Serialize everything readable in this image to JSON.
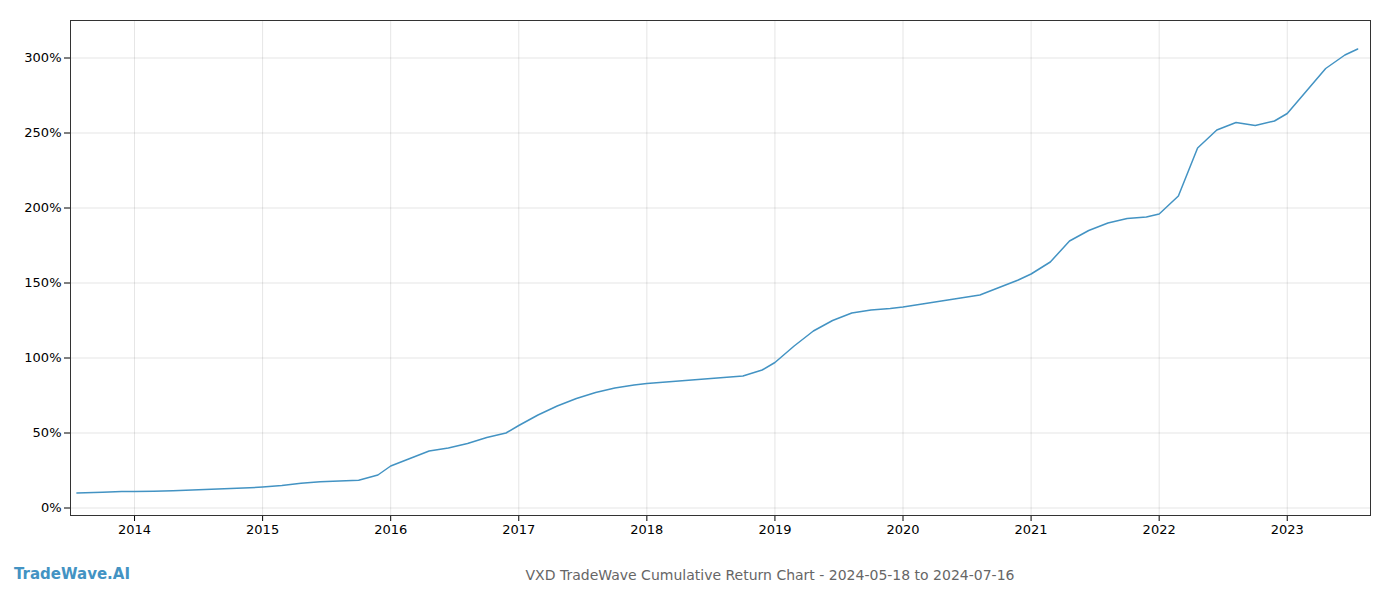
{
  "chart_data": {
    "type": "line",
    "title": "VXD TradeWave Cumulative Return Chart - 2024-05-18 to 2024-07-16",
    "annotations": [
      {
        "text": "TradeWave.AI",
        "color": "#4393c3"
      }
    ],
    "x": [
      2013.55,
      2013.75,
      2013.9,
      2014.0,
      2014.15,
      2014.3,
      2014.45,
      2014.6,
      2014.75,
      2014.9,
      2015.0,
      2015.15,
      2015.3,
      2015.45,
      2015.6,
      2015.75,
      2015.9,
      2016.0,
      2016.15,
      2016.3,
      2016.45,
      2016.6,
      2016.75,
      2016.9,
      2017.0,
      2017.15,
      2017.3,
      2017.45,
      2017.6,
      2017.75,
      2017.9,
      2018.0,
      2018.15,
      2018.3,
      2018.45,
      2018.6,
      2018.75,
      2018.9,
      2019.0,
      2019.15,
      2019.3,
      2019.45,
      2019.6,
      2019.75,
      2019.9,
      2020.0,
      2020.15,
      2020.3,
      2020.45,
      2020.6,
      2020.75,
      2020.9,
      2021.0,
      2021.15,
      2021.3,
      2021.45,
      2021.6,
      2021.75,
      2021.9,
      2022.0,
      2022.15,
      2022.3,
      2022.45,
      2022.6,
      2022.75,
      2022.9,
      2023.0,
      2023.15,
      2023.3,
      2023.45,
      2023.55
    ],
    "values": [
      10,
      10.5,
      11,
      11,
      11.2,
      11.5,
      12,
      12.5,
      13,
      13.5,
      14,
      15,
      16.5,
      17.5,
      18,
      18.5,
      22,
      28,
      33,
      38,
      40,
      43,
      47,
      50,
      55,
      62,
      68,
      73,
      77,
      80,
      82,
      83,
      84,
      85,
      86,
      87,
      88,
      92,
      97,
      108,
      118,
      125,
      130,
      132,
      133,
      134,
      136,
      138,
      140,
      142,
      147,
      152,
      156,
      164,
      178,
      185,
      190,
      193,
      194,
      196,
      208,
      240,
      252,
      257,
      255,
      258,
      263,
      278,
      293,
      302,
      306
    ],
    "color": "#4393c3",
    "xlim": [
      2013.5,
      2023.65
    ],
    "xticks": [
      2014,
      2015,
      2016,
      2017,
      2018,
      2019,
      2020,
      2021,
      2022,
      2023
    ],
    "ylim": [
      -5,
      325
    ],
    "yticks": [
      {
        "value": 0,
        "label": "0%"
      },
      {
        "value": 50,
        "label": "50%"
      },
      {
        "value": 100,
        "label": "100%"
      },
      {
        "value": 150,
        "label": "150%"
      },
      {
        "value": 200,
        "label": "200%"
      },
      {
        "value": 250,
        "label": "250%"
      },
      {
        "value": 300,
        "label": "300%"
      }
    ],
    "grid": true
  }
}
